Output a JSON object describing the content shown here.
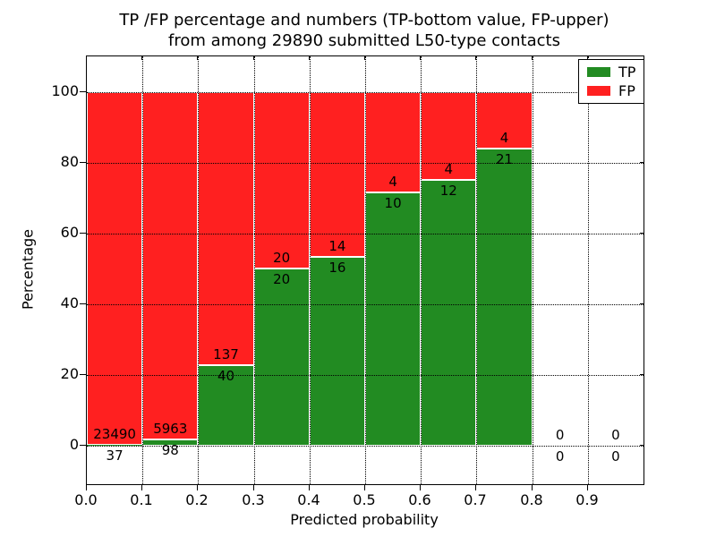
{
  "title": {
    "line1": "TP /FP percentage and numbers (TP-bottom value, FP-upper)",
    "line2": "from among 29890 submitted L50-type contacts"
  },
  "axes": {
    "xlabel": "Predicted probability",
    "ylabel": "Percentage",
    "xticks": [
      "0.0",
      "0.1",
      "0.2",
      "0.3",
      "0.4",
      "0.5",
      "0.6",
      "0.7",
      "0.8",
      "0.9"
    ],
    "yticks": [
      "0",
      "20",
      "40",
      "60",
      "80",
      "100"
    ]
  },
  "legend": [
    {
      "label": "TP",
      "color": "#228B22"
    },
    {
      "label": "FP",
      "color": "#FF2020"
    }
  ],
  "colors": {
    "tp": "#228B22",
    "fp": "#FF2020",
    "grid": "#000000",
    "background": "#ffffff"
  },
  "chart_data": {
    "type": "bar",
    "stacked": true,
    "normalized_to": 100,
    "title": "TP /FP percentage and numbers (TP-bottom value, FP-upper) from among 29890 submitted L50-type contacts",
    "xlabel": "Predicted probability",
    "ylabel": "Percentage",
    "categories": [
      0.0,
      0.1,
      0.2,
      0.3,
      0.4,
      0.5,
      0.6,
      0.7,
      0.8,
      0.9
    ],
    "bin_width": 0.1,
    "series": [
      {
        "name": "TP",
        "color": "#228B22",
        "counts": [
          37,
          98,
          40,
          20,
          16,
          10,
          12,
          21,
          0,
          0
        ]
      },
      {
        "name": "FP",
        "color": "#FF2020",
        "counts": [
          23490,
          5963,
          137,
          20,
          14,
          4,
          4,
          4,
          0,
          0
        ]
      }
    ],
    "tp_percent_of_bin": [
      0.16,
      1.62,
      22.6,
      50.0,
      53.3,
      71.4,
      75.0,
      84.0,
      0,
      0
    ],
    "total_contacts": 29890,
    "xlim": [
      0,
      1.0
    ],
    "ylim": [
      -11,
      110
    ],
    "grid": "dotted",
    "legend_position": "upper right"
  }
}
